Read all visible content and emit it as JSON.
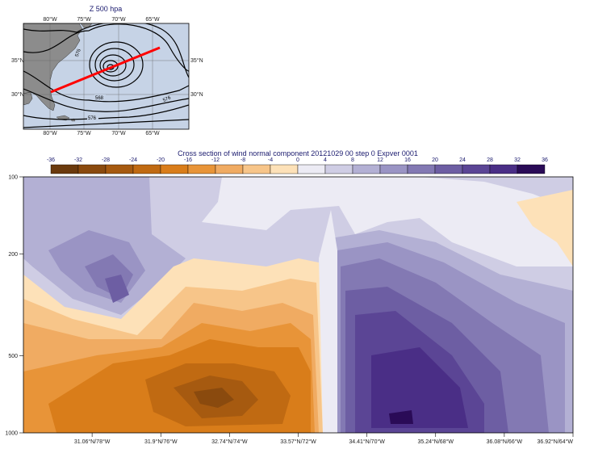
{
  "map_panel": {
    "title": "Z 500 hpa",
    "lon_labels": [
      "80°W",
      "75°W",
      "70°W",
      "65°W"
    ],
    "lat_labels": [
      "35°N",
      "30°N"
    ],
    "contour_labels": [
      "576",
      "568",
      "576",
      "576"
    ],
    "colors": {
      "ocean": "#c6d3e6",
      "land": "#8c8c8c",
      "section_line": "#ff0000"
    }
  },
  "chart_data": {
    "type": "heatmap",
    "title": "Cross section of wind normal component 20121029 00 step 0 Expver 0001",
    "colorbar": {
      "levels": [
        -36,
        -32,
        -28,
        -24,
        -20,
        -16,
        -12,
        -8,
        -4,
        0,
        4,
        8,
        12,
        16,
        20,
        24,
        28,
        32,
        36
      ],
      "colors": [
        "#6b3a0d",
        "#8a4a0e",
        "#a65a10",
        "#c06a12",
        "#d97d1a",
        "#e89438",
        "#f0ab62",
        "#f7c589",
        "#fde1b8",
        "#ecebf4",
        "#cfcde4",
        "#b3b0d4",
        "#9a94c4",
        "#8379b3",
        "#6d5ea3",
        "#5b4595",
        "#4a2e86",
        "#2a0b57"
      ]
    },
    "y_axis": {
      "scale": "log",
      "ylim": [
        1000,
        100
      ],
      "tick_labels": [
        "100",
        "200",
        "500",
        "1000"
      ]
    },
    "x_axis": {
      "tick_labels": [
        "31.06°N/78°W",
        "31.9°N/76°W",
        "32.74°N/74°W",
        "33.57°N/72°W",
        "34.41°N/70°W",
        "35.24°N/68°W",
        "36.08°N/66°W",
        "36.92°N/64°W"
      ]
    }
  }
}
